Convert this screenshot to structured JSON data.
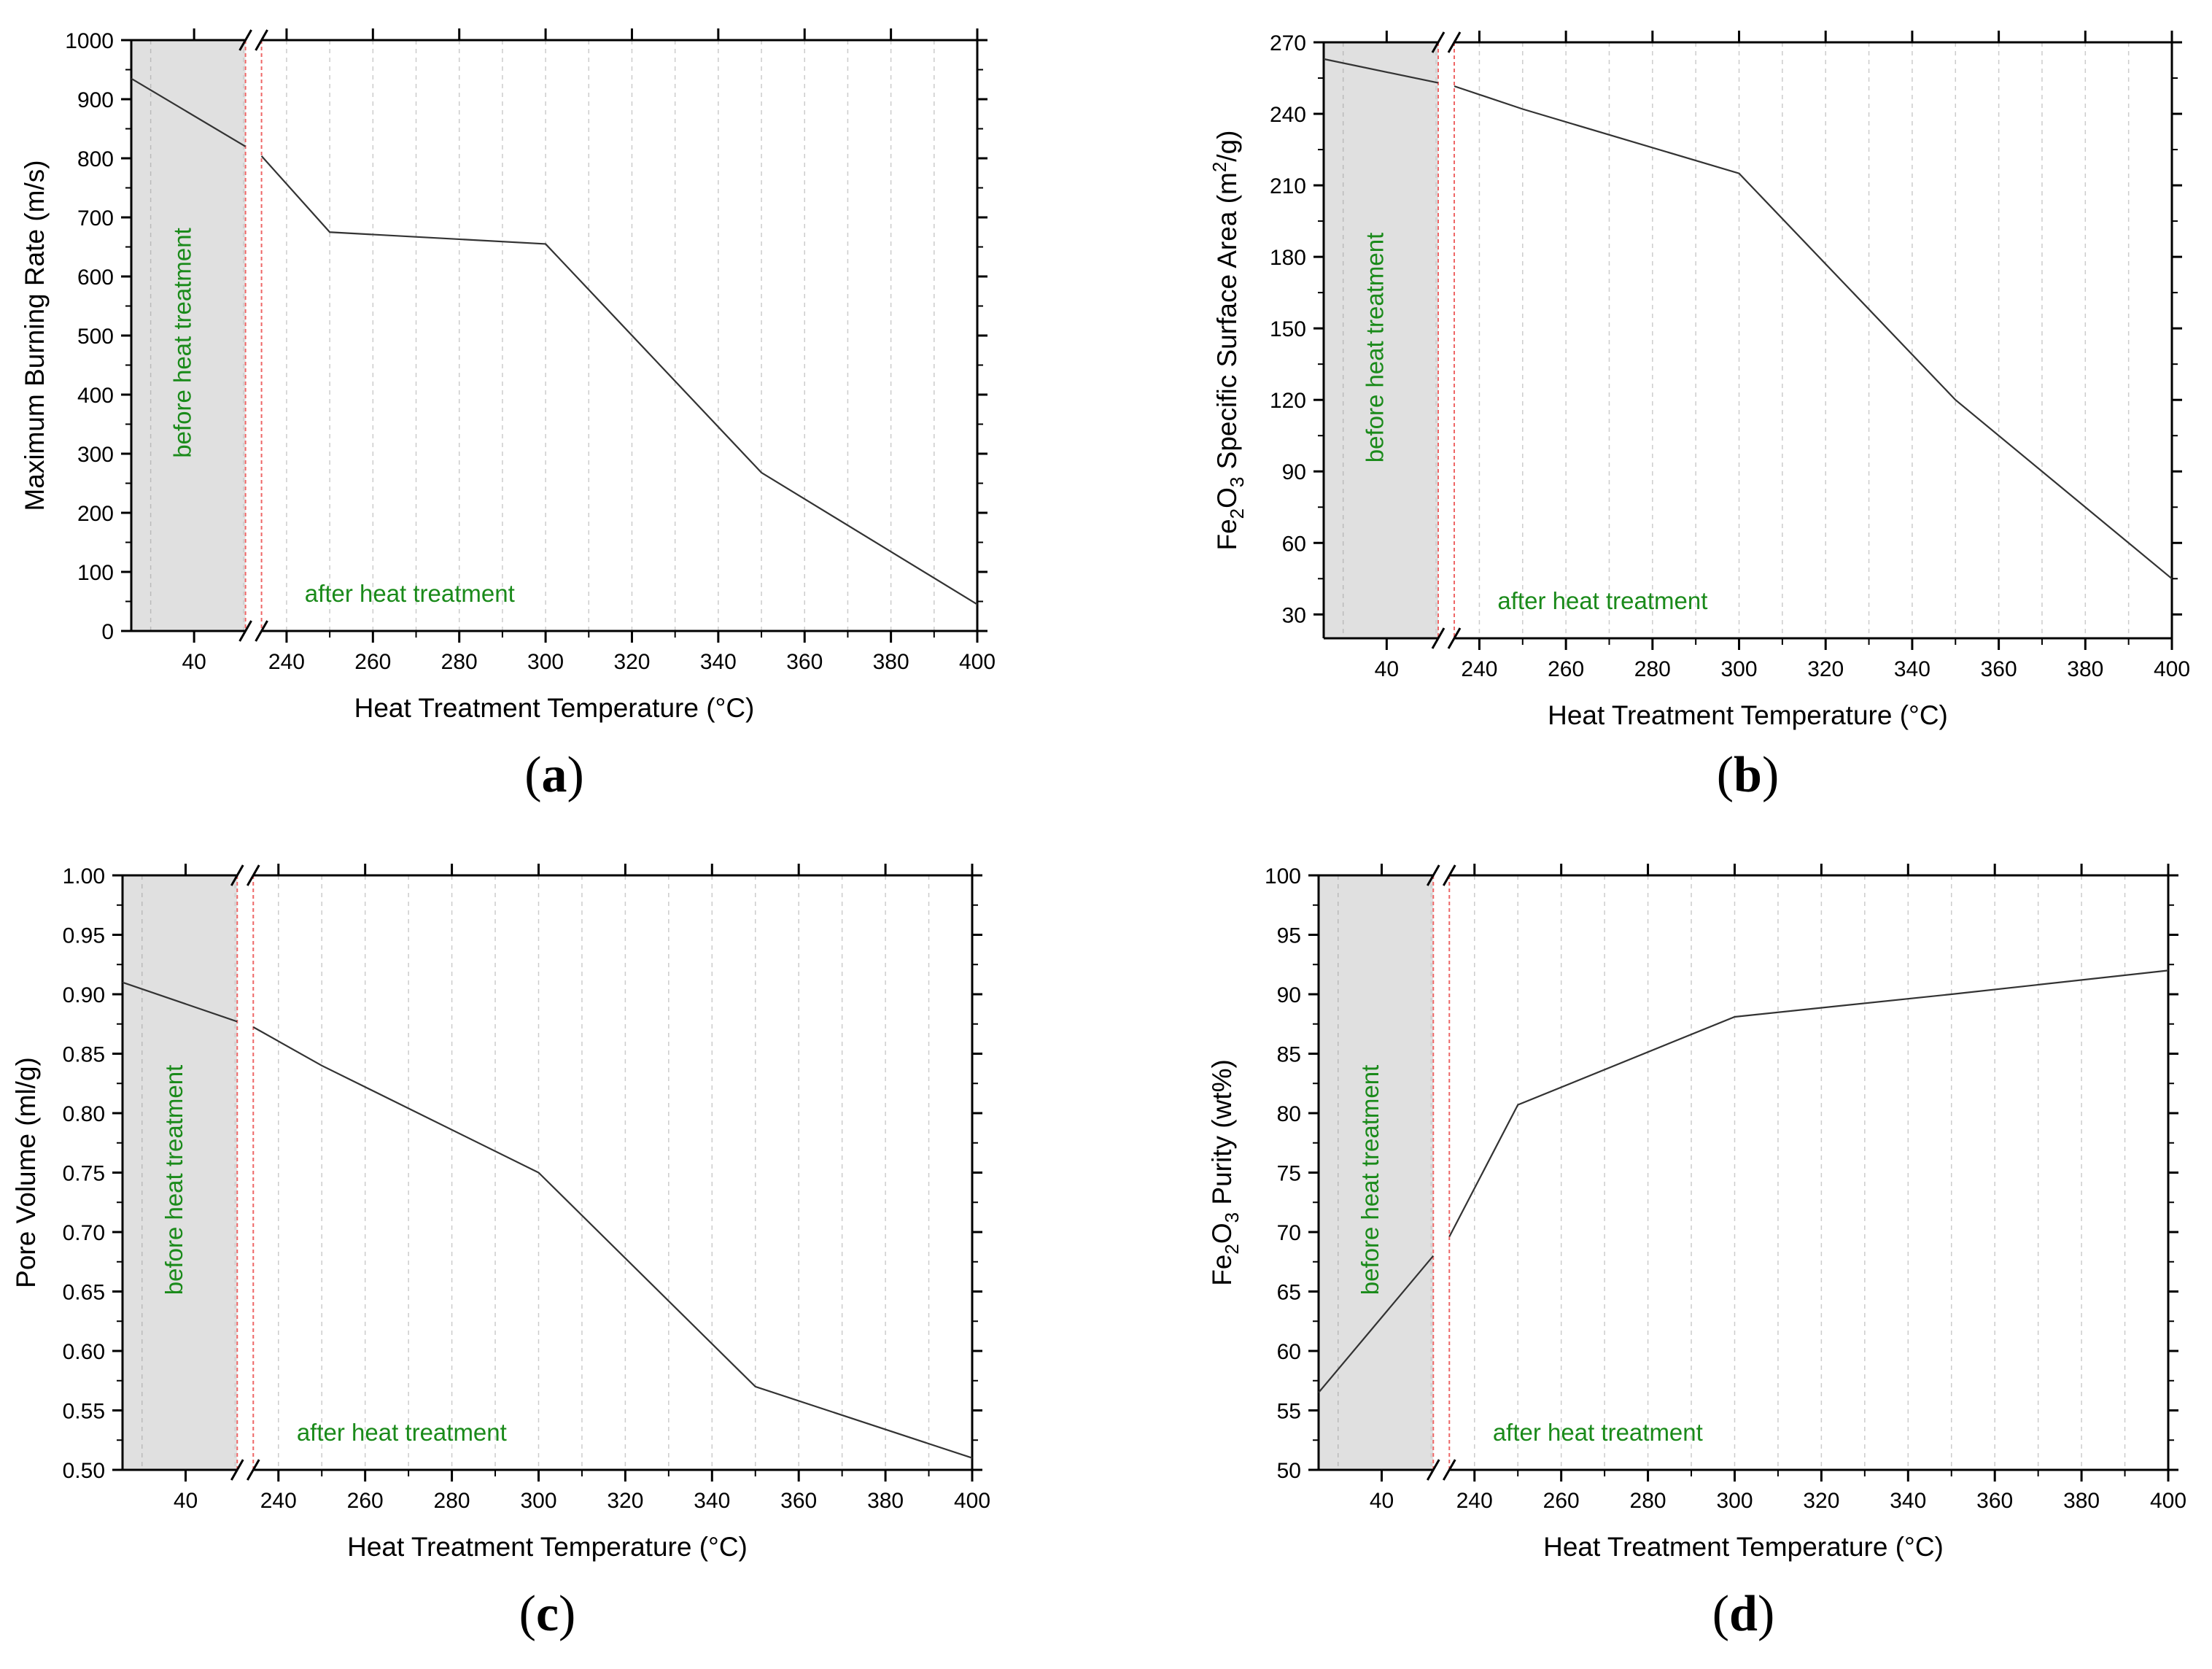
{
  "figure": {
    "shared": {
      "xlabel": "Heat Treatment Temperature (°C)",
      "before_label": "before heat treatment",
      "after_label": "after heat treatment",
      "x_ticks": [
        40,
        240,
        260,
        280,
        300,
        320,
        340,
        360,
        380,
        400
      ],
      "colors": {
        "line": "#333333",
        "annotation_text": "#1a8a1a",
        "shade": "#e0e0e0",
        "break_line": "#ee6666",
        "grid": "#cccccc"
      }
    }
  },
  "chart_data": [
    {
      "panel": "a",
      "label_open": "(",
      "label_letter": "a",
      "label_close": ")",
      "type": "line",
      "title": "",
      "xlabel": "Heat Treatment Temperature (°C)",
      "ylabel": "Maximum Burning Rate (m/s)",
      "ylabel_parts": [
        "Maximum Burning Rate (m/s)"
      ],
      "ylim": [
        0,
        1000
      ],
      "y_ticks": [
        0,
        100,
        200,
        300,
        400,
        500,
        600,
        700,
        800,
        900,
        1000
      ],
      "x": [
        "before",
        250,
        300,
        350,
        400
      ],
      "values": [
        820,
        675,
        655,
        268,
        45
      ],
      "before_line_start": 935
    },
    {
      "panel": "b",
      "label_open": "(",
      "label_letter": "b",
      "label_close": ")",
      "type": "line",
      "title": "",
      "xlabel": "Heat Treatment Temperature (°C)",
      "ylabel": "Fe2O3 Specific Surface Area (m2/g)",
      "ylabel_parts": [
        "Fe",
        "2",
        "O",
        "3",
        " Specific Surface Area (m",
        "2",
        "/g)"
      ],
      "ylim": [
        20,
        270
      ],
      "y_ticks": [
        30,
        60,
        90,
        120,
        150,
        180,
        210,
        240,
        270
      ],
      "x": [
        "before",
        250,
        300,
        350,
        400
      ],
      "values": [
        253,
        242,
        215,
        120,
        45
      ],
      "before_line_start": 263
    },
    {
      "panel": "c",
      "label_open": "(",
      "label_letter": "c",
      "label_close": ")",
      "type": "line",
      "title": "",
      "xlabel": "Heat Treatment Temperature (°C)",
      "ylabel": "Pore Volume (ml/g)",
      "ylabel_parts": [
        "Pore Volume (ml/g)"
      ],
      "ylim": [
        0.5,
        1.0
      ],
      "y_ticks": [
        "0.50",
        "0.55",
        "0.60",
        "0.65",
        "0.70",
        "0.75",
        "0.80",
        "0.85",
        "0.90",
        "0.95",
        "1.00"
      ],
      "x": [
        "before",
        250,
        300,
        350,
        400
      ],
      "values": [
        0.877,
        0.84,
        0.75,
        0.57,
        0.51
      ],
      "before_line_start": 0.91
    },
    {
      "panel": "d",
      "label_open": "(",
      "label_letter": "d",
      "label_close": ")",
      "type": "line",
      "title": "",
      "xlabel": "Heat Treatment Temperature (°C)",
      "ylabel": "Fe2O3 Purity (wt%)",
      "ylabel_parts": [
        "Fe",
        "2",
        "O",
        "3",
        " Purity (wt%)"
      ],
      "ylim": [
        50,
        100
      ],
      "y_ticks": [
        50,
        55,
        60,
        65,
        70,
        75,
        80,
        85,
        90,
        95,
        100
      ],
      "x": [
        "before",
        250,
        300,
        350,
        400
      ],
      "values": [
        68,
        80.7,
        88.1,
        90,
        92
      ],
      "before_line_start": 56.5
    }
  ]
}
